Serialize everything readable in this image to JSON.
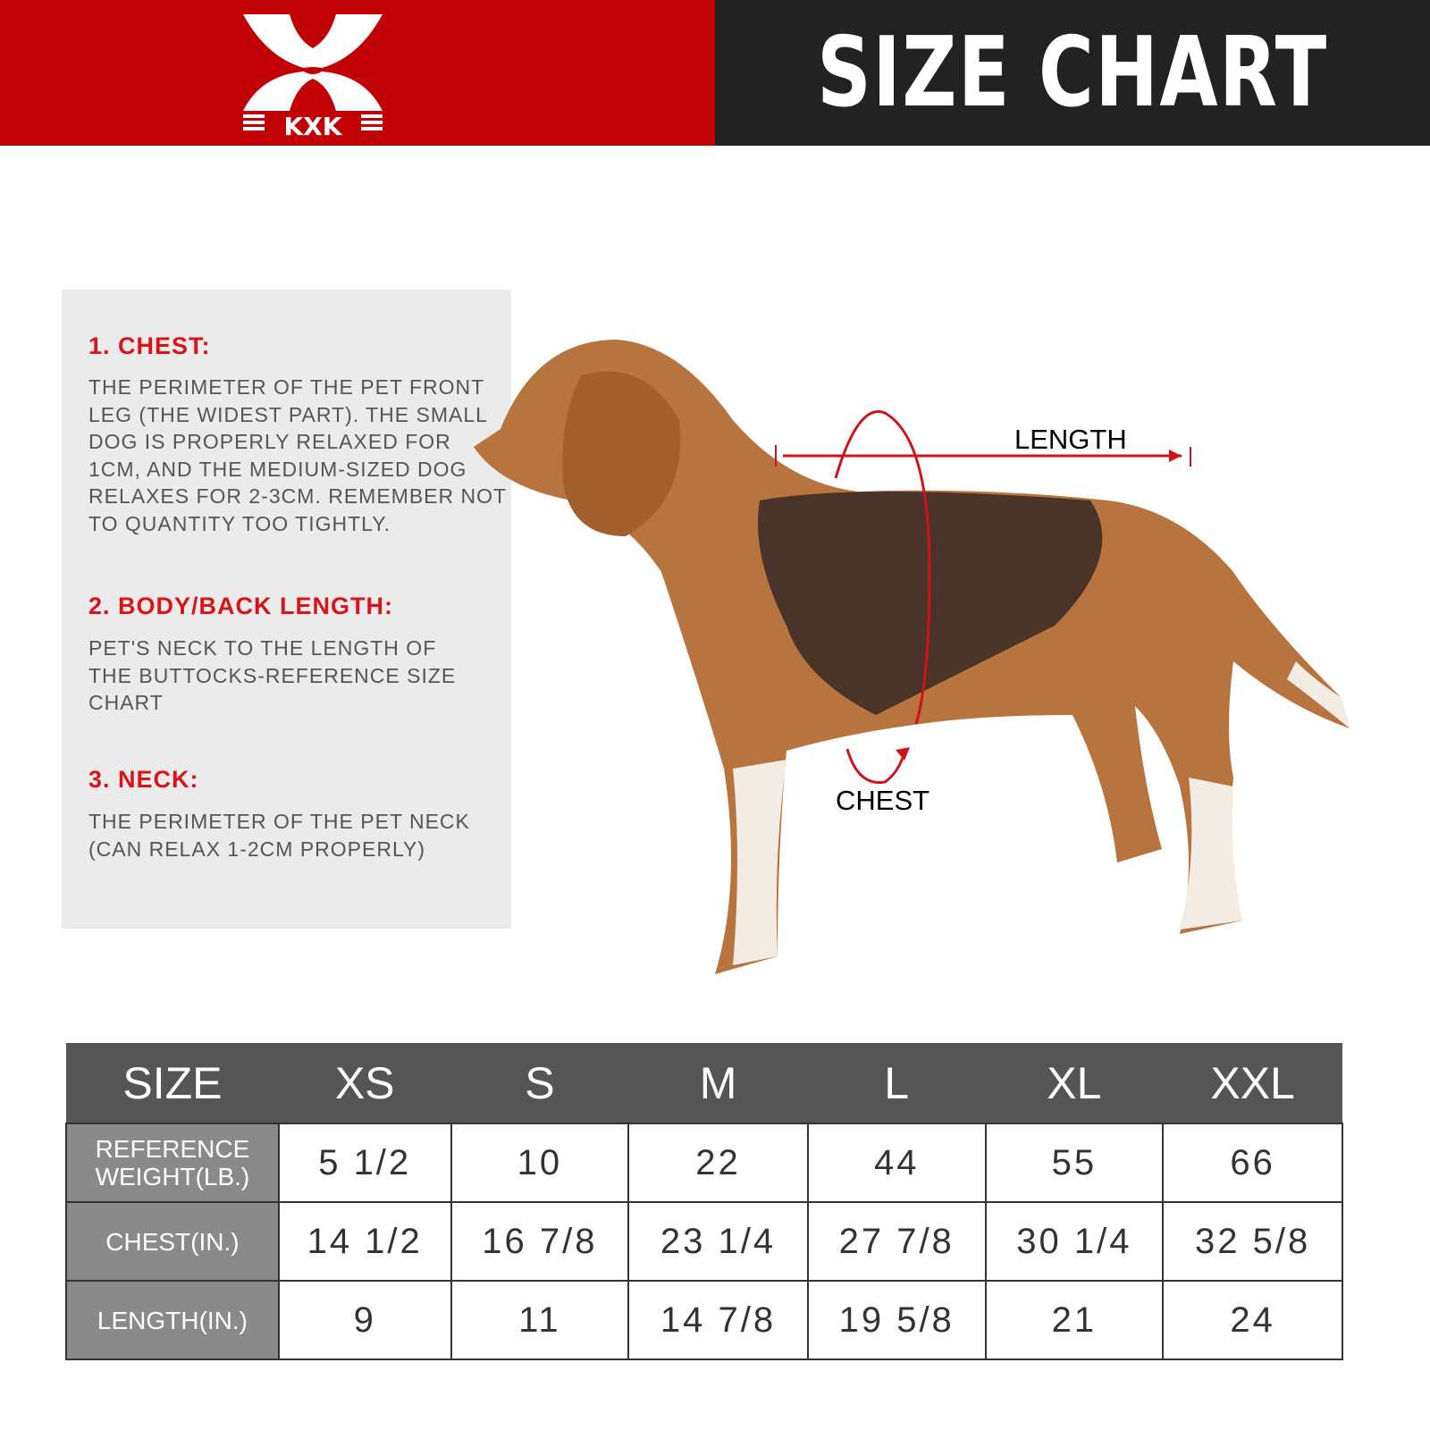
{
  "header": {
    "brand": "KXK",
    "title": "SIZE CHART",
    "colors": {
      "brand_red": "#c00005",
      "title_bg": "#222222",
      "accent_text": "#d9131a"
    }
  },
  "guide": {
    "sections": [
      {
        "heading": "1. CHEST:",
        "text": "THE PERIMETER OF THE PET FRONT LEG (THE WIDEST PART). THE SMALL DOG IS PROPERLY RELAXED FOR 1CM, AND THE MEDIUM-SIZED DOG RELAXES FOR 2-3CM. REMEMBER NOT TO QUANTITY TOO TIGHTLY."
      },
      {
        "heading": "2. BODY/BACK LENGTH:",
        "text": "PET'S NECK TO THE LENGTH OF THE BUTTOCKS-REFERENCE SIZE CHART"
      },
      {
        "heading": "3. NECK:",
        "text": "THE PERIMETER OF THE PET NECK (CAN RELAX 1-2CM PROPERLY)"
      }
    ]
  },
  "illustration": {
    "length_label": "LENGTH",
    "chest_label": "CHEST"
  },
  "table": {
    "headers": [
      "SIZE",
      "XS",
      "S",
      "M",
      "L",
      "XL",
      "XXL"
    ],
    "rows": [
      {
        "label": "REFERENCE WEIGHT(LB.)",
        "values": [
          "5 1/2",
          "10",
          "22",
          "44",
          "55",
          "66"
        ]
      },
      {
        "label": "CHEST(IN.)",
        "values": [
          "14 1/2",
          "16 7/8",
          "23 1/4",
          "27 7/8",
          "30 1/4",
          "32 5/8"
        ]
      },
      {
        "label": "LENGTH(IN.)",
        "values": [
          "9",
          "11",
          "14 7/8",
          "19 5/8",
          "21",
          "24"
        ]
      }
    ]
  }
}
